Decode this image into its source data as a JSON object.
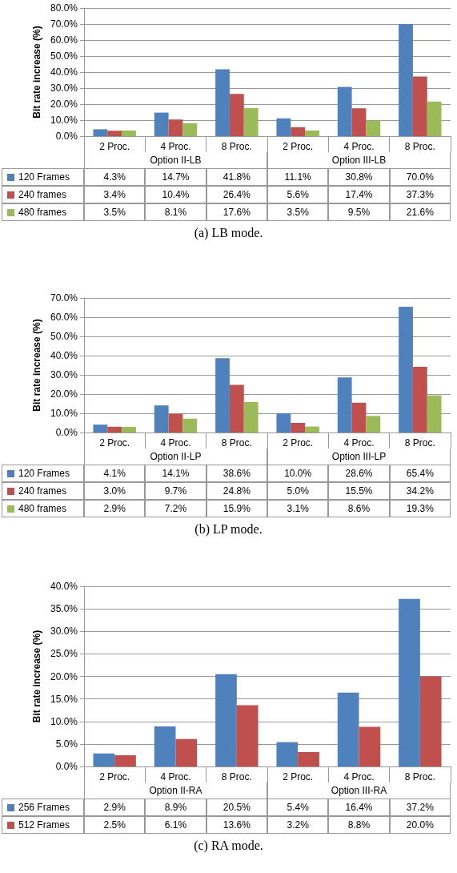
{
  "chart_data": [
    {
      "type": "bar",
      "title": "(a)  LB mode.",
      "ylabel": "Bit rate increase (%)",
      "categories": [
        "2 Proc.",
        "4 Proc.",
        "8 Proc.",
        "2 Proc.",
        "4 Proc.",
        "8 Proc."
      ],
      "annotations": [
        "Option II-LB",
        "Option III-LB"
      ],
      "series": [
        {
          "name": "120 Frames",
          "color": "#4f81bd",
          "values": [
            4.3,
            14.7,
            41.8,
            11.1,
            30.8,
            70.0
          ],
          "value_labels": [
            "4.3%",
            "14.7%",
            "41.8%",
            "11.1%",
            "30.8%",
            "70.0%"
          ]
        },
        {
          "name": "240 frames",
          "color": "#c0504d",
          "values": [
            3.4,
            10.4,
            26.4,
            5.6,
            17.4,
            37.3
          ],
          "value_labels": [
            "3.4%",
            "10.4%",
            "26.4%",
            "5.6%",
            "17.4%",
            "37.3%"
          ]
        },
        {
          "name": "480 frames",
          "color": "#9bbb59",
          "values": [
            3.5,
            8.1,
            17.6,
            3.5,
            9.5,
            21.6
          ],
          "value_labels": [
            "3.5%",
            "8.1%",
            "17.6%",
            "3.5%",
            "9.5%",
            "21.6%"
          ]
        }
      ],
      "ylim": [
        0,
        80
      ],
      "yticks": [
        {
          "value": 0,
          "label": "0.0%"
        },
        {
          "value": 10,
          "label": "10.0%"
        },
        {
          "value": 20,
          "label": "20.0%"
        },
        {
          "value": 30,
          "label": "30.0%"
        },
        {
          "value": 40,
          "label": "40.0%"
        },
        {
          "value": 50,
          "label": "50.0%"
        },
        {
          "value": 60,
          "label": "60.0%"
        },
        {
          "value": 70,
          "label": "70.0%"
        },
        {
          "value": 80,
          "label": "80.0%"
        }
      ],
      "grid": "y",
      "legend": "bottom"
    },
    {
      "type": "bar",
      "title": "(b)  LP mode.",
      "ylabel": "Bit rate increase (%)",
      "categories": [
        "2 Proc.",
        "4 Proc.",
        "8 Proc.",
        "2 Proc.",
        "4 Proc.",
        "8 Proc."
      ],
      "annotations": [
        "Option II-LP",
        "Option III-LP"
      ],
      "series": [
        {
          "name": "120 Frames",
          "color": "#4f81bd",
          "values": [
            4.1,
            14.1,
            38.6,
            10.0,
            28.6,
            65.4
          ],
          "value_labels": [
            "4.1%",
            "14.1%",
            "38.6%",
            "10.0%",
            "28.6%",
            "65.4%"
          ]
        },
        {
          "name": "240 frames",
          "color": "#c0504d",
          "values": [
            3.0,
            9.7,
            24.8,
            5.0,
            15.5,
            34.2
          ],
          "value_labels": [
            "3.0%",
            "9.7%",
            "24.8%",
            "5.0%",
            "15.5%",
            "34.2%"
          ]
        },
        {
          "name": "480 frames",
          "color": "#9bbb59",
          "values": [
            2.9,
            7.2,
            15.9,
            3.1,
            8.6,
            19.3
          ],
          "value_labels": [
            "2.9%",
            "7.2%",
            "15.9%",
            "3.1%",
            "8.6%",
            "19.3%"
          ]
        }
      ],
      "ylim": [
        0,
        70
      ],
      "yticks": [
        {
          "value": 0,
          "label": "0.0%"
        },
        {
          "value": 10,
          "label": "10.0%"
        },
        {
          "value": 20,
          "label": "20.0%"
        },
        {
          "value": 30,
          "label": "30.0%"
        },
        {
          "value": 40,
          "label": "40.0%"
        },
        {
          "value": 50,
          "label": "50.0%"
        },
        {
          "value": 60,
          "label": "60.0%"
        },
        {
          "value": 70,
          "label": "70.0%"
        }
      ],
      "grid": "y",
      "legend": "bottom"
    },
    {
      "type": "bar",
      "title": "(c)  RA mode.",
      "ylabel": "Bit rate increase (%)",
      "categories": [
        "2 Proc.",
        "4 Proc.",
        "8 Proc.",
        "2 Proc.",
        "4 Proc.",
        "8 Proc."
      ],
      "annotations": [
        "Option II-RA",
        "Option III-RA"
      ],
      "series": [
        {
          "name": "256 Frames",
          "color": "#4f81bd",
          "values": [
            2.9,
            8.9,
            20.5,
            5.4,
            16.4,
            37.2
          ],
          "value_labels": [
            "2.9%",
            "8.9%",
            "20.5%",
            "5.4%",
            "16.4%",
            "37.2%"
          ]
        },
        {
          "name": "512 Frames",
          "color": "#c0504d",
          "values": [
            2.5,
            6.1,
            13.6,
            3.2,
            8.8,
            20.0
          ],
          "value_labels": [
            "2.5%",
            "6.1%",
            "13.6%",
            "3.2%",
            "8.8%",
            "20.0%"
          ]
        }
      ],
      "ylim": [
        0,
        40
      ],
      "yticks": [
        {
          "value": 0,
          "label": "0.0%"
        },
        {
          "value": 5,
          "label": "5.0%"
        },
        {
          "value": 10,
          "label": "10.0%"
        },
        {
          "value": 15,
          "label": "15.0%"
        },
        {
          "value": 20,
          "label": "20.0%"
        },
        {
          "value": 25,
          "label": "25.0%"
        },
        {
          "value": 30,
          "label": "30.0%"
        },
        {
          "value": 35,
          "label": "35.0%"
        },
        {
          "value": 40,
          "label": "40.0%"
        }
      ],
      "grid": "y",
      "legend": "bottom"
    }
  ]
}
